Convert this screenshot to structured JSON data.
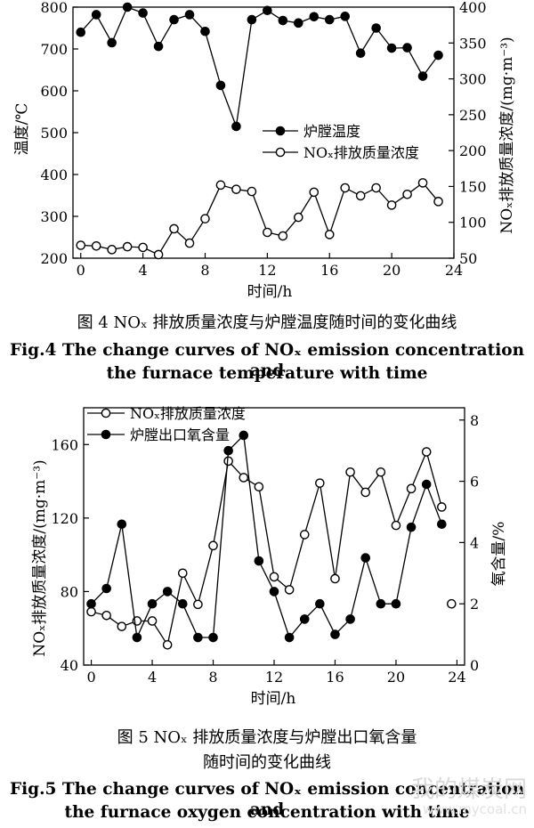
{
  "figures": [
    {
      "caption_zh": "图 4 NOₓ 排放质量浓度与炉膛温度随时间的变化曲线",
      "caption_en_1": "Fig.4 The change curves of NOₓ emission concentration and",
      "caption_en_2": "the furnace temperature with time"
    },
    {
      "caption_zh_1": "图 5 NOₓ 排放质量浓度与炉膛出口氧含量",
      "caption_zh_2": "随时间的变化曲线",
      "caption_en_1": "Fig.5 The change curves of NOₓ emission concentration and",
      "caption_en_2": "the furnace oxygen concentration with time"
    }
  ],
  "watermark": {
    "cn": "我的煤炭网",
    "url": "www.mycoal.cn"
  },
  "chart_data": [
    {
      "type": "line",
      "xlabel": "时间/h",
      "ylabel_left": "温度/℃",
      "ylabel_right": "NOₓ排放质量浓度/(mg·m⁻³)",
      "xlim": [
        -0.5,
        24
      ],
      "x_ticks": [
        0,
        4,
        8,
        12,
        16,
        20,
        24
      ],
      "ylim_left": [
        200,
        800
      ],
      "y_ticks_left": [
        200,
        300,
        400,
        500,
        600,
        700,
        800
      ],
      "ylim_right": [
        50,
        400
      ],
      "y_ticks_right": [
        50,
        100,
        150,
        200,
        250,
        300,
        350,
        400
      ],
      "legend_position": "center-right",
      "x": [
        0,
        1,
        2,
        3,
        4,
        5,
        6,
        7,
        8,
        9,
        10,
        11,
        12,
        13,
        14,
        15,
        16,
        17,
        18,
        19,
        20,
        21,
        22,
        23
      ],
      "series": [
        {
          "name": "炉膛温度",
          "marker": "filled",
          "axis": "left",
          "values": [
            740,
            782,
            715,
            800,
            786,
            706,
            770,
            782,
            742,
            613,
            515,
            770,
            792,
            768,
            762,
            777,
            770,
            778,
            690,
            750,
            702,
            703,
            635,
            685
          ]
        },
        {
          "name": "NOₓ排放质量浓度",
          "marker": "open",
          "axis": "right",
          "values": [
            68,
            67,
            62,
            66,
            65,
            55,
            91,
            71,
            105,
            152,
            146,
            143,
            86,
            81,
            107,
            142,
            83,
            148,
            137,
            148,
            124,
            139,
            155,
            129
          ]
        }
      ]
    },
    {
      "type": "line",
      "xlabel": "时间/h",
      "ylabel_left": "NOₓ排放质量浓度/(mg·m⁻³)",
      "ylabel_right": "氧含量/%",
      "xlim": [
        -0.5,
        24.5
      ],
      "x_ticks": [
        0,
        4,
        8,
        12,
        16,
        20,
        24
      ],
      "ylim_left": [
        40,
        180
      ],
      "y_ticks_left": [
        40,
        80,
        120,
        160
      ],
      "ylim_right": [
        0,
        8.4
      ],
      "y_ticks_right": [
        0,
        2,
        4,
        6,
        8
      ],
      "legend_position": "top-left",
      "x": [
        0,
        1,
        2,
        3,
        4,
        5,
        6,
        7,
        8,
        9,
        10,
        11,
        12,
        13,
        14,
        15,
        16,
        17,
        18,
        19,
        20,
        21,
        22,
        23
      ],
      "series": [
        {
          "name": "NOₓ排放质量浓度",
          "marker": "open",
          "axis": "left",
          "values": [
            69,
            67,
            61,
            64,
            64,
            51,
            90,
            73,
            105,
            151,
            142,
            137,
            88,
            81,
            111,
            139,
            87,
            145,
            134,
            145,
            116,
            136,
            156,
            126
          ]
        },
        {
          "name": "炉膛出口氧含量",
          "marker": "filled",
          "axis": "right",
          "values": [
            2.0,
            2.5,
            4.6,
            0.9,
            2.0,
            2.4,
            2.0,
            0.9,
            0.9,
            7.0,
            7.5,
            3.4,
            2.4,
            0.9,
            1.5,
            2.0,
            1.0,
            1.5,
            3.5,
            2.0,
            2.0,
            4.5,
            5.9,
            4.6
          ]
        }
      ],
      "annotation": {
        "x": 23,
        "y": 2.0,
        "axis": "right",
        "marker": "open",
        "note": "isolated open marker"
      }
    }
  ]
}
